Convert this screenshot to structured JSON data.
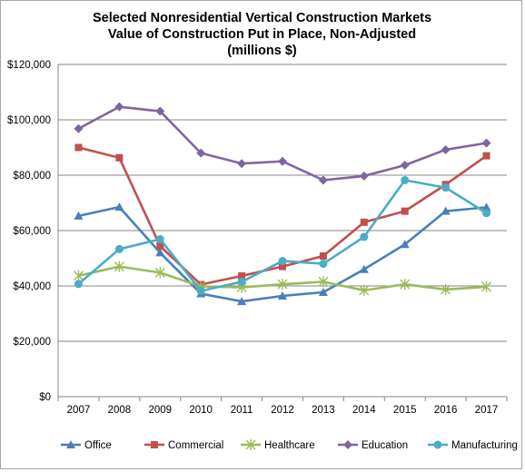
{
  "chart_data": {
    "type": "line",
    "title": [
      "Selected Nonresidential Vertical Construction Markets",
      "Value of Construction Put in Place, Non-Adjusted",
      "(millions $)"
    ],
    "xlabel": "",
    "ylabel": "",
    "categories": [
      "2007",
      "2008",
      "2009",
      "2010",
      "2011",
      "2012",
      "2013",
      "2014",
      "2015",
      "2016",
      "2017"
    ],
    "ylim": [
      0,
      120000
    ],
    "yticks": [
      0,
      20000,
      40000,
      60000,
      80000,
      100000,
      120000
    ],
    "ytick_labels": [
      "$0",
      "$20,000",
      "$40,000",
      "$60,000",
      "$80,000",
      "$100,000",
      "$120,000"
    ],
    "grid": "horizontal",
    "legend_position": "bottom",
    "series": [
      {
        "name": "Office",
        "color": "#4a7ebb",
        "marker": "triangle",
        "values": [
          65300,
          68500,
          52000,
          37200,
          34400,
          36400,
          37700,
          46000,
          55000,
          67000,
          68400
        ]
      },
      {
        "name": "Commercial",
        "color": "#c0504d",
        "marker": "square",
        "values": [
          90000,
          86300,
          54400,
          40500,
          43600,
          47000,
          50800,
          63000,
          67000,
          76600,
          87000
        ]
      },
      {
        "name": "Healthcare",
        "color": "#9bbb59",
        "marker": "star",
        "values": [
          43700,
          47000,
          44800,
          39800,
          39500,
          40600,
          41500,
          38400,
          40600,
          38700,
          39700
        ]
      },
      {
        "name": "Education",
        "color": "#8064a2",
        "marker": "diamond",
        "values": [
          96800,
          104700,
          103100,
          88000,
          84200,
          85000,
          78200,
          79700,
          83600,
          89200,
          91600
        ]
      },
      {
        "name": "Manufacturing",
        "color": "#4bacc6",
        "marker": "circle",
        "values": [
          40700,
          53300,
          56900,
          38200,
          41500,
          49000,
          48000,
          57700,
          78200,
          75500,
          66300
        ]
      }
    ]
  }
}
